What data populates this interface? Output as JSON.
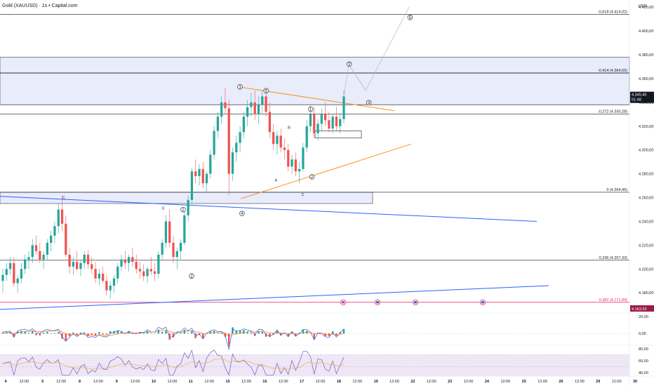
{
  "header": {
    "title": "Gold (XAUUSD) · 1s • Capital.com",
    "currency": "USD"
  },
  "colors": {
    "bull": "#26a69a",
    "bear": "#ef5350",
    "zone_fill": "#e8ecfb",
    "zone_stroke": "#131722",
    "trendline": "#2962ff",
    "triangle": "#f7931a",
    "red_line": "#e91e63",
    "price_badge": "#131722",
    "red_badge": "#9c1c4a",
    "macd_line": "#2962ff",
    "signal_line": "#ff6d00",
    "rsi_line": "#7e57c2",
    "rsi_ma": "#f5b041",
    "rsi_band": "#ede7f6"
  },
  "chart_data": [
    {
      "type": "candlestick",
      "title": "Gold (XAUUSD) · 1s • Capital.com",
      "ylabel": "USD",
      "ylim": [
        4163,
        4426
      ],
      "y_ticks": [
        "4.420,00",
        "4.400,00",
        "4.380,00",
        "4.360,00",
        "4.340,00",
        "4.320,00",
        "4.300,00",
        "4.280,00",
        "4.260,00",
        "4.240,00",
        "4.220,00",
        "4.200,00",
        "4.180,00"
      ],
      "x_ticks": [
        "4",
        "12:00",
        "5",
        "12:00",
        "8",
        "12:00",
        "9",
        "12:00",
        "10",
        "12:00",
        "11",
        "12:00",
        "15",
        "12:00",
        "16",
        "12:00",
        "17",
        "12:00",
        "18",
        "12:00",
        "19",
        "12:00",
        "22",
        "12:00",
        "23",
        "12:00",
        "24",
        "12:00",
        "25",
        "12:00",
        "26",
        "12:00",
        "29",
        "12:00",
        "30"
      ],
      "fib_levels": [
        {
          "label": "-0,618 (4.414,02)",
          "value": 4414.02
        },
        {
          "label": "-0,414 (4.364,65)",
          "value": 4364.65
        },
        {
          "label": "-0,272 (4.330,28)",
          "value": 4330.28
        },
        {
          "label": "0 (4.264,45)",
          "value": 4264.45
        },
        {
          "label": "0,236 (4.207,33)",
          "value": 4207.33
        },
        {
          "label": "0,382 (4.171,99)",
          "value": 4171.99
        }
      ],
      "last_price": {
        "label": "4.345,40",
        "timer": "51:48",
        "value": 4345.4
      },
      "red_level": {
        "label": "4.163,33",
        "value": 4163.33
      },
      "candles": [
        [
          4190,
          4200,
          4180,
          4195
        ],
        [
          4195,
          4205,
          4190,
          4200
        ],
        [
          4200,
          4210,
          4195,
          4205
        ],
        [
          4205,
          4210,
          4185,
          4188
        ],
        [
          4188,
          4195,
          4180,
          4192
        ],
        [
          4192,
          4205,
          4188,
          4200
        ],
        [
          4200,
          4212,
          4196,
          4208
        ],
        [
          4208,
          4215,
          4200,
          4210
        ],
        [
          4210,
          4225,
          4205,
          4220
        ],
        [
          4220,
          4228,
          4212,
          4215
        ],
        [
          4215,
          4222,
          4205,
          4208
        ],
        [
          4208,
          4215,
          4200,
          4212
        ],
        [
          4212,
          4225,
          4208,
          4222
        ],
        [
          4222,
          4232,
          4215,
          4228
        ],
        [
          4228,
          4240,
          4222,
          4236
        ],
        [
          4236,
          4255,
          4230,
          4250
        ],
        [
          4250,
          4262,
          4232,
          4238
        ],
        [
          4238,
          4245,
          4210,
          4212
        ],
        [
          4212,
          4218,
          4196,
          4202
        ],
        [
          4202,
          4210,
          4195,
          4206
        ],
        [
          4206,
          4215,
          4198,
          4200
        ],
        [
          4200,
          4208,
          4194,
          4205
        ],
        [
          4205,
          4215,
          4200,
          4212
        ],
        [
          4212,
          4216,
          4200,
          4204
        ],
        [
          4204,
          4210,
          4196,
          4200
        ],
        [
          4200,
          4206,
          4188,
          4192
        ],
        [
          4192,
          4200,
          4186,
          4196
        ],
        [
          4196,
          4202,
          4188,
          4190
        ],
        [
          4190,
          4195,
          4178,
          4182
        ],
        [
          4182,
          4190,
          4175,
          4186
        ],
        [
          4186,
          4195,
          4180,
          4192
        ],
        [
          4192,
          4205,
          4188,
          4202
        ],
        [
          4202,
          4212,
          4198,
          4208
        ],
        [
          4208,
          4215,
          4200,
          4205
        ],
        [
          4205,
          4212,
          4198,
          4210
        ],
        [
          4210,
          4218,
          4202,
          4206
        ],
        [
          4206,
          4212,
          4196,
          4200
        ],
        [
          4200,
          4206,
          4192,
          4198
        ],
        [
          4198,
          4204,
          4190,
          4194
        ],
        [
          4194,
          4202,
          4188,
          4200
        ],
        [
          4200,
          4210,
          4195,
          4198
        ],
        [
          4198,
          4205,
          4190,
          4196
        ],
        [
          4196,
          4215,
          4192,
          4212
        ],
        [
          4212,
          4225,
          4208,
          4222
        ],
        [
          4222,
          4245,
          4218,
          4240
        ],
        [
          4240,
          4250,
          4218,
          4222
        ],
        [
          4222,
          4228,
          4205,
          4210
        ],
        [
          4210,
          4218,
          4200,
          4215
        ],
        [
          4215,
          4225,
          4208,
          4222
        ],
        [
          4222,
          4248,
          4220,
          4245
        ],
        [
          4245,
          4262,
          4240,
          4258
        ],
        [
          4258,
          4285,
          4255,
          4282
        ],
        [
          4282,
          4292,
          4272,
          4278
        ],
        [
          4278,
          4288,
          4270,
          4284
        ],
        [
          4284,
          4290,
          4268,
          4272
        ],
        [
          4272,
          4282,
          4265,
          4280
        ],
        [
          4280,
          4300,
          4276,
          4296
        ],
        [
          4296,
          4320,
          4292,
          4316
        ],
        [
          4316,
          4332,
          4310,
          4328
        ],
        [
          4328,
          4345,
          4322,
          4340
        ],
        [
          4340,
          4352,
          4330,
          4335
        ],
        [
          4335,
          4342,
          4262,
          4280
        ],
        [
          4280,
          4302,
          4274,
          4298
        ],
        [
          4298,
          4312,
          4290,
          4306
        ],
        [
          4306,
          4320,
          4298,
          4315
        ],
        [
          4315,
          4332,
          4310,
          4328
        ],
        [
          4328,
          4342,
          4320,
          4336
        ],
        [
          4336,
          4348,
          4328,
          4340
        ],
        [
          4340,
          4350,
          4325,
          4330
        ],
        [
          4330,
          4345,
          4322,
          4338
        ],
        [
          4338,
          4350,
          4330,
          4345
        ],
        [
          4345,
          4350,
          4328,
          4332
        ],
        [
          4332,
          4340,
          4310,
          4315
        ],
        [
          4315,
          4322,
          4300,
          4305
        ],
        [
          4305,
          4316,
          4296,
          4312
        ],
        [
          4312,
          4318,
          4298,
          4302
        ],
        [
          4302,
          4310,
          4292,
          4300
        ],
        [
          4300,
          4305,
          4282,
          4286
        ],
        [
          4286,
          4296,
          4280,
          4292
        ],
        [
          4292,
          4298,
          4278,
          4282
        ],
        [
          4282,
          4290,
          4272,
          4284
        ],
        [
          4284,
          4306,
          4282,
          4302
        ],
        [
          4302,
          4325,
          4298,
          4320
        ],
        [
          4320,
          4338,
          4315,
          4330
        ],
        [
          4330,
          4336,
          4310,
          4314
        ],
        [
          4314,
          4326,
          4308,
          4322
        ],
        [
          4322,
          4335,
          4316,
          4330
        ],
        [
          4330,
          4340,
          4320,
          4325
        ],
        [
          4325,
          4332,
          4315,
          4318
        ],
        [
          4318,
          4330,
          4314,
          4328
        ],
        [
          4328,
          4336,
          4316,
          4320
        ],
        [
          4320,
          4330,
          4314,
          4326
        ],
        [
          4326,
          4350,
          4322,
          4345
        ]
      ],
      "annotations": [
        {
          "text": "C",
          "x": 0.0975,
          "y": 0.515,
          "circled": false
        },
        {
          "text": "E",
          "x": 0.25,
          "y": 0.543,
          "circled": false
        },
        {
          "text": "1",
          "x": 0.28,
          "y": 0.543,
          "circled": true
        },
        {
          "text": "2",
          "x": 0.293,
          "y": 0.715,
          "circled": true
        },
        {
          "text": "3",
          "x": 0.367,
          "y": 0.225,
          "circled": true
        },
        {
          "text": "4",
          "x": 0.37,
          "y": 0.553,
          "circled": true
        },
        {
          "text": "5",
          "x": 0.407,
          "y": 0.235,
          "circled": true
        },
        {
          "text": "B",
          "x": 0.442,
          "y": 0.334,
          "circled": false
        },
        {
          "text": "A",
          "x": 0.422,
          "y": 0.47,
          "circled": false
        },
        {
          "text": "C",
          "x": 0.463,
          "y": 0.507,
          "circled": false
        },
        {
          "text": "1",
          "x": 0.475,
          "y": 0.283,
          "circled": true
        },
        {
          "text": "2",
          "x": 0.477,
          "y": 0.458,
          "circled": true
        },
        {
          "text": "3",
          "x": 0.534,
          "y": 0.166,
          "circled": true
        },
        {
          "text": "4",
          "x": 0.564,
          "y": 0.266,
          "circled": true
        },
        {
          "text": "5",
          "x": 0.627,
          "y": 0.045,
          "circled": true
        }
      ]
    },
    {
      "type": "macd",
      "ylim": [
        -14,
        24
      ],
      "y_ticks": [
        "20,00",
        "0,00"
      ]
    },
    {
      "type": "rsi",
      "ylim": [
        34,
        86
      ],
      "y_ticks": [
        "80,00",
        "60,00",
        "40,00"
      ]
    }
  ]
}
